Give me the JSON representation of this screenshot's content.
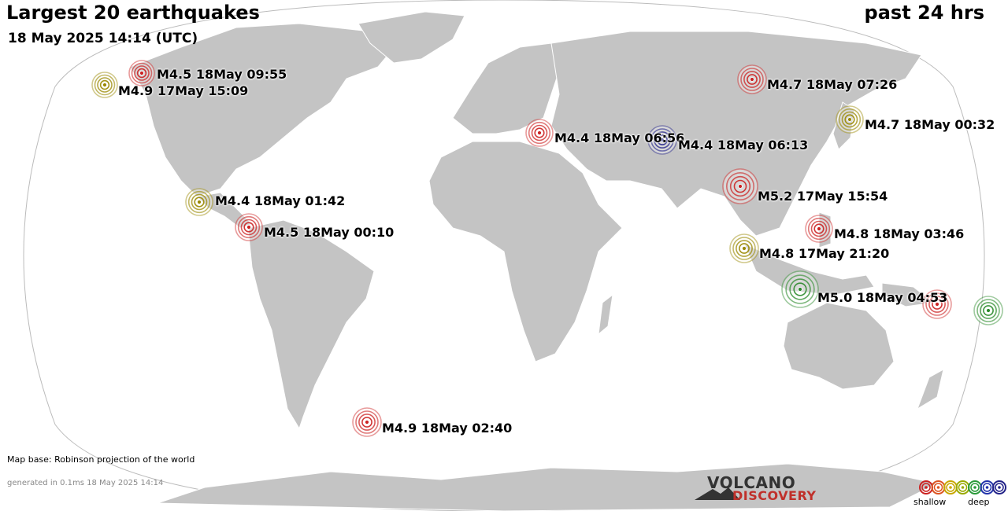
{
  "title": "Largest 20 earthquakes",
  "period": "past 24 hrs",
  "timestamp": "18 May 2025 14:14 (UTC)",
  "map_base": "Map base: Robinson projection of the world",
  "generated": "generated in 0.1ms 18 May 2025 14:14",
  "logo": {
    "top": "VOLCANO",
    "bottom": "DISCOVERY"
  },
  "legend": {
    "shallow": "shallow",
    "deep": "deep",
    "colors": [
      "#cc2222",
      "#dd5522",
      "#c8a800",
      "#9aaa00",
      "#2a9a3a",
      "#2233aa",
      "#222288"
    ]
  },
  "colors": {
    "land": "#c4c4c4",
    "ocean": "#ffffff",
    "border": "#ffffff"
  },
  "quakes": [
    {
      "label": "M4.5 18May 09:55",
      "color": "#cc2222"
    },
    {
      "label": "M4.9 17May 15:09",
      "color": "#9a8800"
    },
    {
      "label": "M4.7 18May 07:26",
      "color": "#cc2222"
    },
    {
      "label": "M4.7 18May 00:32",
      "color": "#9a8800"
    },
    {
      "label": "M4.4 18May 06:56",
      "color": "#cc2222"
    },
    {
      "label": "M4.4 18May 06:13",
      "color": "#222288"
    },
    {
      "label": "M5.2 17May 15:54",
      "color": "#cc2222"
    },
    {
      "label": "M4.4 18May 01:42",
      "color": "#9a8800"
    },
    {
      "label": "M4.5 18May 00:10",
      "color": "#cc2222"
    },
    {
      "label": "M4.8 18May 03:46",
      "color": "#cc2222"
    },
    {
      "label": "M4.8 17May 21:20",
      "color": "#9a8800"
    },
    {
      "label": "M5.0 18May 04:53",
      "color": "#2a8a2a"
    },
    {
      "label": "",
      "color": "#cc2222"
    },
    {
      "label": "",
      "color": "#2a8a2a"
    },
    {
      "label": "M4.9 18May 02:40",
      "color": "#cc2222"
    }
  ]
}
